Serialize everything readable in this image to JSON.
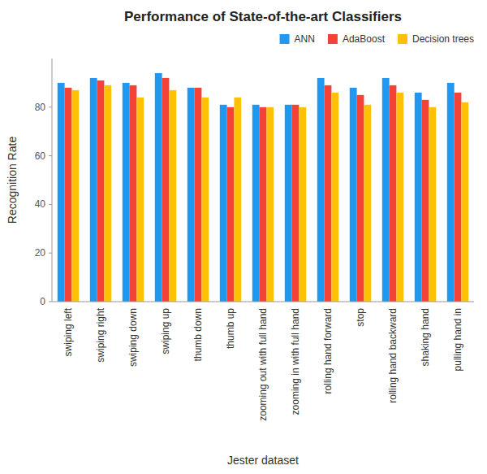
{
  "chart_data": {
    "type": "bar",
    "title": "Performance of State-of-the-art Classifiers",
    "xlabel": "Jester dataset",
    "ylabel": "Recognition Rate",
    "categories": [
      "swiping left",
      "swiping right",
      "swiping down",
      "swiping up",
      "thumb down",
      "thumb up",
      "zooming out with full hand",
      "zooming in with full hand",
      "rolling hand forward",
      "stop",
      "rolling hand backward",
      "shaking hand",
      "pulling hand in"
    ],
    "series": [
      {
        "name": "ANN",
        "color": "#2196f3",
        "values": [
          90,
          92,
          90,
          94,
          88,
          81,
          81,
          81,
          92,
          88,
          92,
          86,
          90
        ]
      },
      {
        "name": "AdaBoost",
        "color": "#f44336",
        "values": [
          88,
          91,
          89,
          92,
          88,
          80,
          80,
          81,
          89,
          85,
          89,
          83,
          86
        ]
      },
      {
        "name": "Decision trees",
        "color": "#ffc107",
        "values": [
          87,
          89,
          84,
          87,
          84,
          84,
          80,
          80,
          86,
          81,
          86,
          80,
          82
        ]
      }
    ],
    "ylim": [
      0,
      100
    ],
    "yticks": [
      0,
      20,
      40,
      60,
      80
    ],
    "grid": false,
    "legend": "upper right"
  }
}
